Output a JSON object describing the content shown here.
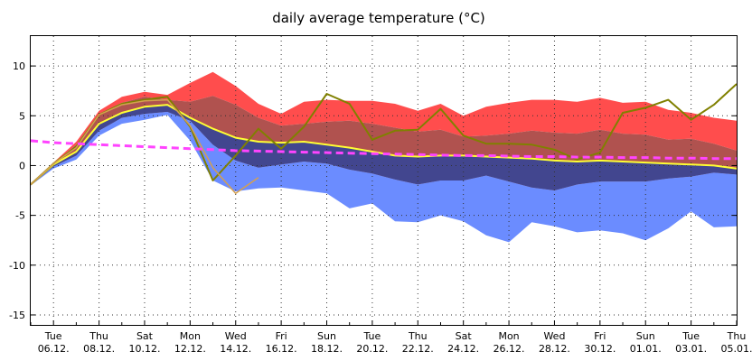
{
  "chart_data": {
    "type": "area",
    "title": "daily average temperature (°C)",
    "xlabel": "",
    "ylabel": "",
    "ylim": [
      -16,
      13
    ],
    "grid": true,
    "yticks": [
      10,
      5,
      0,
      -5,
      -10,
      -15
    ],
    "x_ticks": [
      {
        "day": "Tue",
        "date": "06.12."
      },
      {
        "day": "Thu",
        "date": "08.12."
      },
      {
        "day": "Sat",
        "date": "10.12."
      },
      {
        "day": "Mon",
        "date": "12.12."
      },
      {
        "day": "Wed",
        "date": "14.12."
      },
      {
        "day": "Fri",
        "date": "16.12."
      },
      {
        "day": "Sun",
        "date": "18.12."
      },
      {
        "day": "Tue",
        "date": "20.12."
      },
      {
        "day": "Thu",
        "date": "22.12."
      },
      {
        "day": "Sat",
        "date": "24.12."
      },
      {
        "day": "Mon",
        "date": "26.12."
      },
      {
        "day": "Wed",
        "date": "28.12."
      },
      {
        "day": "Fri",
        "date": "30.12."
      },
      {
        "day": "Sun",
        "date": "01.01."
      },
      {
        "day": "Tue",
        "date": "03.01."
      },
      {
        "day": "Thu",
        "date": "05.01."
      }
    ],
    "x": [
      "05.12.",
      "06.12.",
      "07.12.",
      "08.12.",
      "09.12.",
      "10.12.",
      "11.12.",
      "12.12.",
      "13.12.",
      "14.12.",
      "15.12.",
      "16.12.",
      "17.12.",
      "18.12.",
      "19.12.",
      "20.12.",
      "21.12.",
      "22.12.",
      "23.12.",
      "24.12.",
      "25.12.",
      "26.12.",
      "27.12.",
      "28.12.",
      "29.12.",
      "30.12.",
      "31.12.",
      "01.01.",
      "02.01.",
      "03.01.",
      "04.01.",
      "05.01."
    ],
    "bands": {
      "upper_max": [
        -2.0,
        0.3,
        2.4,
        5.5,
        6.9,
        7.4,
        7.1,
        8.3,
        9.4,
        8.0,
        6.2,
        5.2,
        6.4,
        6.6,
        6.5,
        6.5,
        6.2,
        5.5,
        6.2,
        5.0,
        5.9,
        6.3,
        6.6,
        6.6,
        6.4,
        6.8,
        6.3,
        6.4,
        5.6,
        5.3,
        4.8,
        4.5
      ],
      "upper_q": [
        -2.0,
        0.2,
        2.1,
        5.2,
        6.3,
        6.9,
        6.6,
        6.4,
        7.0,
        6.1,
        4.8,
        4.0,
        4.2,
        4.4,
        4.5,
        4.2,
        3.8,
        3.4,
        3.6,
        2.9,
        3.0,
        3.2,
        3.5,
        3.3,
        3.2,
        3.6,
        3.2,
        3.1,
        2.6,
        2.7,
        2.2,
        1.5
      ],
      "lower_q": [
        -2.0,
        -0.1,
        1.0,
        3.5,
        4.8,
        5.2,
        5.4,
        4.5,
        2.1,
        0.5,
        -0.2,
        0.1,
        0.4,
        0.2,
        -0.4,
        -0.8,
        -1.4,
        -1.9,
        -1.5,
        -1.5,
        -1.0,
        -1.6,
        -2.2,
        -2.5,
        -1.9,
        -1.6,
        -1.6,
        -1.6,
        -1.3,
        -1.1,
        -0.7,
        -0.9
      ],
      "lower_min": [
        -2.0,
        -0.3,
        0.6,
        3.0,
        4.2,
        4.6,
        5.1,
        2.5,
        -1.5,
        -2.6,
        -2.3,
        -2.2,
        -2.5,
        -2.8,
        -4.3,
        -3.8,
        -5.6,
        -5.7,
        -5.0,
        -5.6,
        -7.0,
        -7.7,
        -5.7,
        -6.1,
        -6.7,
        -6.5,
        -6.8,
        -7.5,
        -6.3,
        -4.6,
        -6.2,
        -6.1
      ]
    },
    "series": [
      {
        "values": [
          -1.9,
          0.1,
          1.4,
          4.2,
          5.3,
          5.9,
          6.1,
          4.8,
          3.7,
          2.8,
          2.4,
          2.3,
          2.4,
          2.1,
          1.8,
          1.4,
          1.0,
          0.9,
          1.0,
          1.0,
          0.9,
          0.8,
          0.7,
          0.5,
          0.4,
          0.5,
          0.4,
          0.3,
          0.2,
          0.1,
          0.0,
          -0.3
        ],
        "color": "#ffff33",
        "width": 2
      },
      {
        "values": [
          -1.9,
          0.2,
          1.9,
          5.1,
          6.2,
          6.6,
          6.9,
          3.9,
          -1.5,
          1.0,
          3.7,
          1.7,
          3.9,
          7.2,
          6.2,
          2.6,
          3.5,
          3.6,
          5.7,
          3.0,
          2.2,
          2.2,
          2.1,
          1.6,
          0.6,
          1.3,
          5.3,
          5.8,
          6.6,
          4.6,
          6.1,
          8.2
        ],
        "color": "#808000",
        "width": 2
      },
      {
        "values": [
          -1.9,
          0.2,
          1.8,
          5.1,
          6.1,
          6.5,
          6.6,
          4.0,
          -0.2,
          -2.8,
          -1.2,
          null,
          null,
          null,
          null,
          null,
          null,
          null,
          null,
          null,
          null,
          null,
          null,
          null,
          null,
          null,
          null,
          null,
          null,
          null,
          null,
          null
        ],
        "color": "#d4a050",
        "width": 1.5
      },
      {
        "values": [
          2.5,
          2.3,
          2.2,
          2.1,
          2.0,
          1.9,
          1.8,
          1.7,
          1.6,
          1.5,
          1.45,
          1.4,
          1.35,
          1.3,
          1.25,
          1.2,
          1.15,
          1.1,
          1.05,
          1.0,
          1.0,
          0.95,
          0.9,
          0.9,
          0.85,
          0.85,
          0.8,
          0.8,
          0.75,
          0.75,
          0.7,
          0.7
        ],
        "color": "#ff44ff",
        "width": 3,
        "dashed": true
      }
    ],
    "colors": {
      "upper_max_fill": "#ff4d4d",
      "upper_q_fill": "#b0524f",
      "lower_q_fill": "#42468f",
      "lower_min_fill": "#6b8cff"
    }
  }
}
